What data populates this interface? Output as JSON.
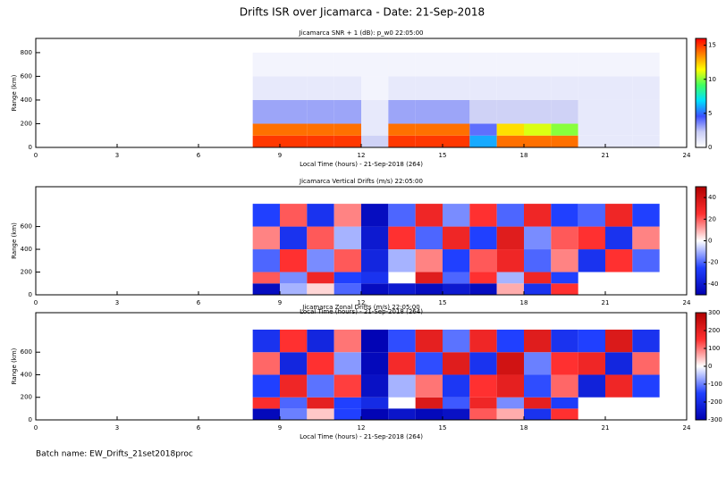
{
  "title": "Drifts ISR over Jicamarca - Date: 21-Sep-2018",
  "footer": "Batch name: EW_Drifts_21set2018proc",
  "chart_data": [
    {
      "type": "heatmap",
      "title": "Jicamarca SNR + 1 (dB): p_w0 22:05:00",
      "xlabel": "Local Time (hours) - 21-Sep-2018 (264)",
      "ylabel": "Range (km)",
      "xlim": [
        0,
        24
      ],
      "xticks": [
        0,
        3,
        6,
        9,
        12,
        15,
        18,
        21,
        24
      ],
      "ylim": [
        0,
        920
      ],
      "yticks": [
        0,
        200,
        400,
        600,
        800
      ],
      "xbins": [
        8,
        9,
        10,
        11,
        12,
        13,
        14,
        15,
        16,
        17,
        18,
        19,
        20,
        21,
        22,
        23
      ],
      "ybins": [
        0,
        100,
        200,
        400,
        600,
        800
      ],
      "z": [
        [
          15,
          15,
          15,
          15,
          2,
          15,
          15,
          15,
          6,
          14,
          14,
          14,
          1,
          1,
          1
        ],
        [
          14,
          14,
          14,
          14,
          1,
          14,
          14,
          14,
          4,
          12,
          11,
          10,
          1,
          1,
          1
        ],
        [
          3,
          3,
          3,
          3,
          1,
          3,
          3,
          3,
          2,
          2,
          2,
          2,
          1,
          1,
          1
        ],
        [
          1,
          1,
          1,
          1,
          0.5,
          1,
          1,
          1,
          1,
          1,
          1,
          1,
          1,
          1,
          1
        ],
        [
          0.5,
          0.5,
          0.5,
          0.5,
          0.5,
          0.5,
          0.5,
          0.5,
          0.5,
          0.5,
          0.5,
          0.5,
          0.5,
          0.5,
          0.5
        ]
      ],
      "zlim": [
        0,
        16
      ],
      "zticks": [
        0,
        5,
        10,
        15
      ],
      "colormap": [
        "#ffffff",
        "#c8ccf5",
        "#3c50ff",
        "#00e0ff",
        "#40ff60",
        "#ffff00",
        "#ff8000",
        "#ff0000"
      ]
    },
    {
      "type": "heatmap",
      "title": "Jicamarca Vertical Drifts (m/s) 22:05:00",
      "xlabel": "Local Time (hours) - 21-Sep-2018 (264)",
      "ylabel": "Range (km)",
      "xlim": [
        0,
        24
      ],
      "xticks": [
        0,
        3,
        6,
        9,
        12,
        15,
        18,
        21,
        24
      ],
      "ylim": [
        0,
        950
      ],
      "yticks": [
        0,
        200,
        400,
        600
      ],
      "xbins": [
        8,
        9,
        10,
        11,
        12,
        13,
        14,
        15,
        16,
        17,
        18,
        19,
        20,
        21,
        22,
        23
      ],
      "ybins": [
        0,
        100,
        200,
        400,
        600,
        800
      ],
      "z": [
        [
          -45,
          -10,
          5,
          -20,
          -45,
          -40,
          -45,
          -40,
          -45,
          10,
          -30,
          25,
          null,
          null,
          null
        ],
        [
          20,
          -15,
          30,
          -25,
          -30,
          null,
          35,
          -20,
          25,
          -10,
          30,
          -25,
          null,
          null,
          null
        ],
        [
          -20,
          25,
          -15,
          20,
          -35,
          -10,
          15,
          -25,
          20,
          30,
          -20,
          15,
          -30,
          25,
          -20
        ],
        [
          15,
          -30,
          20,
          -10,
          -40,
          25,
          -20,
          30,
          -25,
          35,
          -15,
          20,
          25,
          -30,
          15
        ],
        [
          -25,
          20,
          -30,
          15,
          -45,
          -20,
          30,
          -15,
          25,
          -20,
          30,
          -25,
          -20,
          30,
          -25
        ]
      ],
      "zlim": [
        -50,
        50
      ],
      "zticks": [
        -40,
        -20,
        0,
        20,
        40
      ],
      "colormap": [
        "#0000b0",
        "#2040ff",
        "#ffffff",
        "#ff3030",
        "#b00000"
      ]
    },
    {
      "type": "heatmap",
      "title": "Jicamarca Zonal Drifts (m/s) 22:05:00",
      "xlabel": "Local Time (hours) - 21-Sep-2018 (264)",
      "ylabel": "Range (km)",
      "xlim": [
        0,
        24
      ],
      "xticks": [
        0,
        3,
        6,
        9,
        12,
        15,
        18,
        21,
        24
      ],
      "ylim": [
        0,
        950
      ],
      "yticks": [
        0,
        200,
        400,
        600
      ],
      "xbins": [
        8,
        9,
        10,
        11,
        12,
        13,
        14,
        15,
        16,
        17,
        18,
        19,
        20,
        21,
        22,
        23
      ],
      "ybins": [
        0,
        100,
        200,
        400,
        600,
        800
      ],
      "z": [
        [
          -280,
          -100,
          40,
          -150,
          -290,
          -250,
          -280,
          -260,
          120,
          60,
          -180,
          150,
          null,
          null,
          null
        ],
        [
          160,
          -120,
          200,
          -150,
          -200,
          null,
          220,
          -130,
          180,
          -90,
          200,
          -160,
          null,
          null,
          null
        ],
        [
          -150,
          180,
          -110,
          140,
          -260,
          -60,
          100,
          -170,
          150,
          200,
          -140,
          110,
          -220,
          180,
          -150
        ],
        [
          110,
          -210,
          150,
          -80,
          -280,
          170,
          -140,
          210,
          -180,
          240,
          -100,
          150,
          180,
          -210,
          110
        ],
        [
          -180,
          150,
          -210,
          100,
          -290,
          -140,
          200,
          -110,
          180,
          -150,
          210,
          -180,
          -150,
          220,
          -180
        ]
      ],
      "zlim": [
        -300,
        300
      ],
      "zticks": [
        -300,
        -200,
        -100,
        0,
        100,
        200,
        300
      ],
      "colormap": [
        "#0000b0",
        "#2040ff",
        "#ffffff",
        "#ff3030",
        "#b00000"
      ]
    }
  ]
}
